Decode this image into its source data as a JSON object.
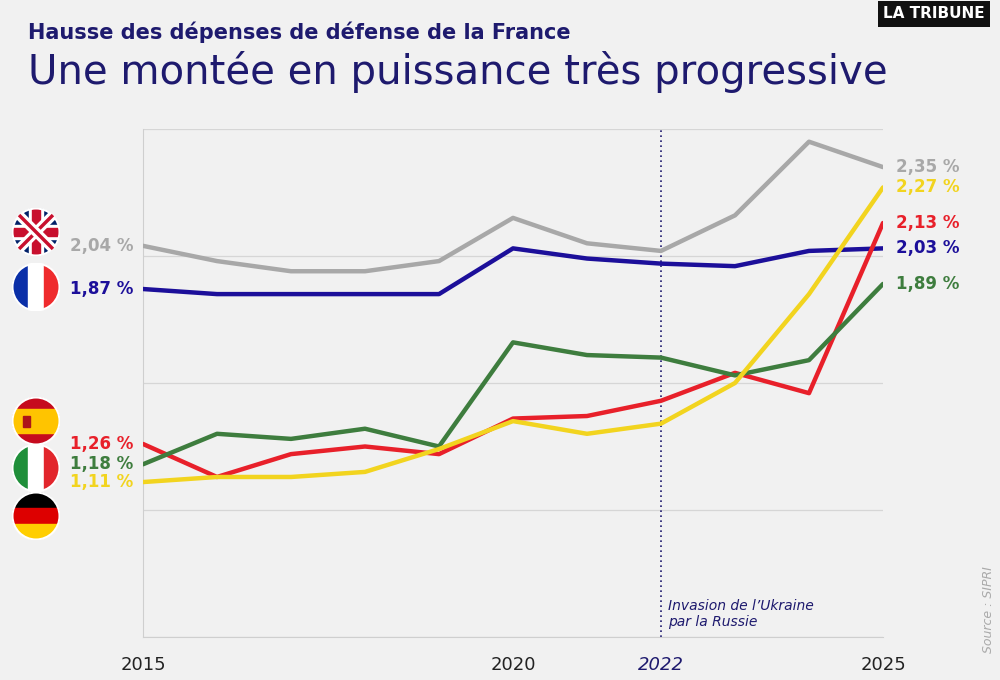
{
  "chart_data": {
    "type": "line",
    "subtitle": "Hausse des dépenses de défense de la France",
    "title": "Une montée en puissance très progressive",
    "logo": "LA TRIBUNE",
    "source": "Source : SIPRI",
    "x": [
      2015,
      2016,
      2017,
      2018,
      2019,
      2020,
      2021,
      2022,
      2023,
      2024,
      2025
    ],
    "xlim": [
      2015,
      2025
    ],
    "xticks": [
      2015,
      2020,
      2022,
      2025
    ],
    "ylim": [
      0.5,
      2.5
    ],
    "yticks": [
      0.5,
      1,
      1.5,
      2,
      2.5
    ],
    "grid": true,
    "tick_labels": "x",
    "data_labels": true,
    "annotations": [
      {
        "x": 2022,
        "text": "Invasion de l’Ukraine\npar la Russie"
      }
    ],
    "series": [
      {
        "color": "#a8a8a8",
        "values": [
          2.04,
          1.98,
          1.94,
          1.94,
          1.98,
          2.15,
          2.05,
          2.02,
          2.16,
          2.45,
          2.35
        ],
        "value_labels": [
          "2,04 %",
          null,
          null,
          null,
          null,
          null,
          null,
          null,
          null,
          null,
          "2,35 %"
        ]
      },
      {
        "color": "#1c0f9a",
        "values": [
          1.87,
          1.85,
          1.85,
          1.85,
          1.85,
          2.03,
          1.99,
          1.97,
          1.96,
          2.02,
          2.03
        ],
        "value_labels": [
          "1,87 %",
          null,
          null,
          null,
          null,
          null,
          null,
          null,
          null,
          null,
          "2,03 %"
        ]
      },
      {
        "color": "#e8202a",
        "values": [
          1.26,
          1.13,
          1.22,
          1.25,
          1.22,
          1.36,
          1.37,
          1.43,
          1.54,
          1.46,
          2.13
        ],
        "value_labels": [
          "1,26 %",
          null,
          null,
          null,
          null,
          null,
          null,
          null,
          null,
          null,
          "2,13 %"
        ]
      },
      {
        "color": "#3e7d3e",
        "values": [
          1.18,
          1.3,
          1.28,
          1.32,
          1.25,
          1.66,
          1.61,
          1.6,
          1.53,
          1.59,
          1.89
        ],
        "value_labels": [
          "1,18 %",
          null,
          null,
          null,
          null,
          null,
          null,
          null,
          null,
          null,
          "1,89 %"
        ]
      },
      {
        "color": "#f2d41f",
        "values": [
          1.11,
          1.13,
          1.13,
          1.15,
          1.24,
          1.35,
          1.3,
          1.34,
          1.5,
          1.85,
          2.27
        ],
        "value_labels": [
          "1,11 %",
          null,
          null,
          null,
          null,
          null,
          null,
          null,
          null,
          null,
          "2,27 %"
        ]
      }
    ]
  }
}
